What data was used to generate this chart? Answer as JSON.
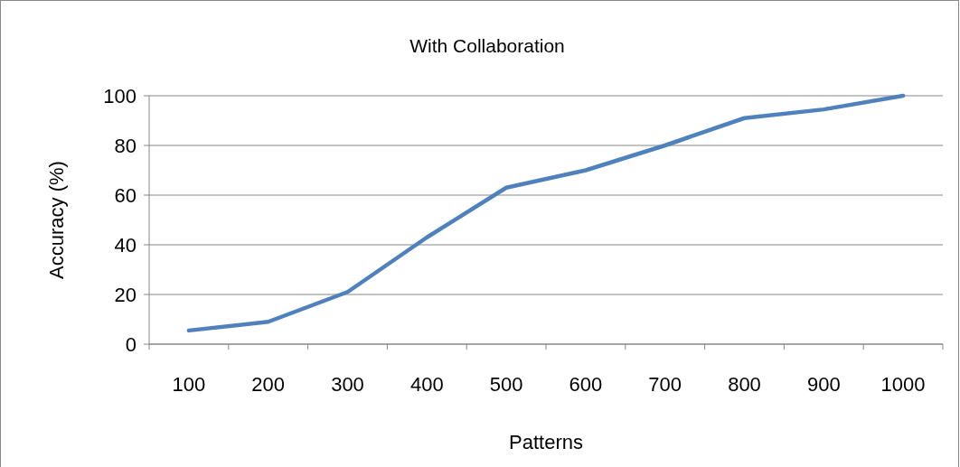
{
  "chart_data": {
    "type": "line",
    "title": "With Collaboration",
    "xlabel": "Patterns",
    "ylabel": "Accuracy (%)",
    "categories": [
      "100",
      "200",
      "300",
      "400",
      "500",
      "600",
      "700",
      "800",
      "900",
      "1000"
    ],
    "series": [
      {
        "color": "#4f81bd",
        "values": [
          5.5,
          9,
          21,
          43,
          63,
          70,
          80,
          91,
          94.5,
          100
        ]
      }
    ],
    "ylim": [
      0,
      100
    ],
    "yticks": [
      0,
      20,
      40,
      60,
      80,
      100
    ],
    "grid": "y",
    "marker": "none",
    "line_style": "solid"
  }
}
